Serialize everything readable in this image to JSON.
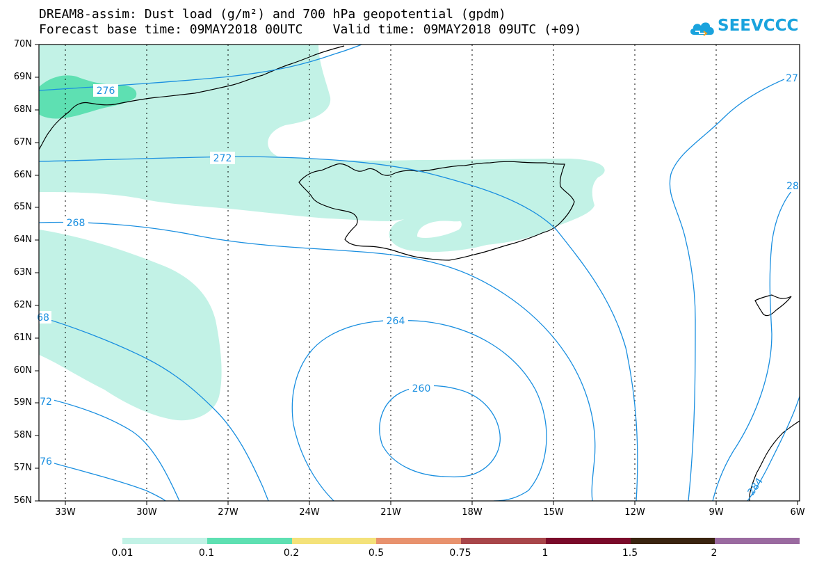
{
  "title": {
    "line1": "DREAM8-assim: Dust load (g/m²) and 700 hPa geopotential (gpdm)",
    "forecast_base": "Forecast base time: 09MAY2018 00UTC",
    "valid_time": "Valid time: 09MAY2018 09UTC (+09)"
  },
  "logo": {
    "text": "SEEVCCC",
    "icon": "cloud-icon",
    "color": "#1aa3dd"
  },
  "map": {
    "lon_range": [
      -34,
      -6
    ],
    "lat_range": [
      56,
      70
    ],
    "lat_ticks": [
      "70N",
      "69N",
      "68N",
      "67N",
      "66N",
      "65N",
      "64N",
      "63N",
      "62N",
      "61N",
      "60N",
      "59N",
      "58N",
      "57N",
      "56N"
    ],
    "lon_ticks": [
      "33W",
      "30W",
      "27W",
      "24W",
      "21W",
      "18W",
      "15W",
      "12W",
      "9W",
      "6W"
    ],
    "contour_color": "#1a8fe0",
    "coast_color": "#000000",
    "contour_labels": [
      {
        "id": "c276a",
        "text": "276"
      },
      {
        "id": "c272a",
        "text": "272"
      },
      {
        "id": "c268a",
        "text": "268"
      },
      {
        "id": "c268b",
        "text": "68"
      },
      {
        "id": "c264a",
        "text": "264"
      },
      {
        "id": "c260a",
        "text": "260"
      },
      {
        "id": "c272b",
        "text": "72"
      },
      {
        "id": "c276b",
        "text": "76"
      },
      {
        "id": "c276c",
        "text": "27"
      },
      {
        "id": "c280a",
        "text": "28"
      },
      {
        "id": "c284a",
        "text": "284"
      }
    ]
  },
  "colorbar": {
    "colors": [
      "#c2f2e6",
      "#5ee0b2",
      "#f4e27a",
      "#e8926e",
      "#a8464a",
      "#7a0a2a",
      "#3a2410",
      "#9a6aa0"
    ],
    "labels": [
      "0.01",
      "0.1",
      "0.2",
      "0.5",
      "0.75",
      "1",
      "1.5",
      "2"
    ]
  }
}
